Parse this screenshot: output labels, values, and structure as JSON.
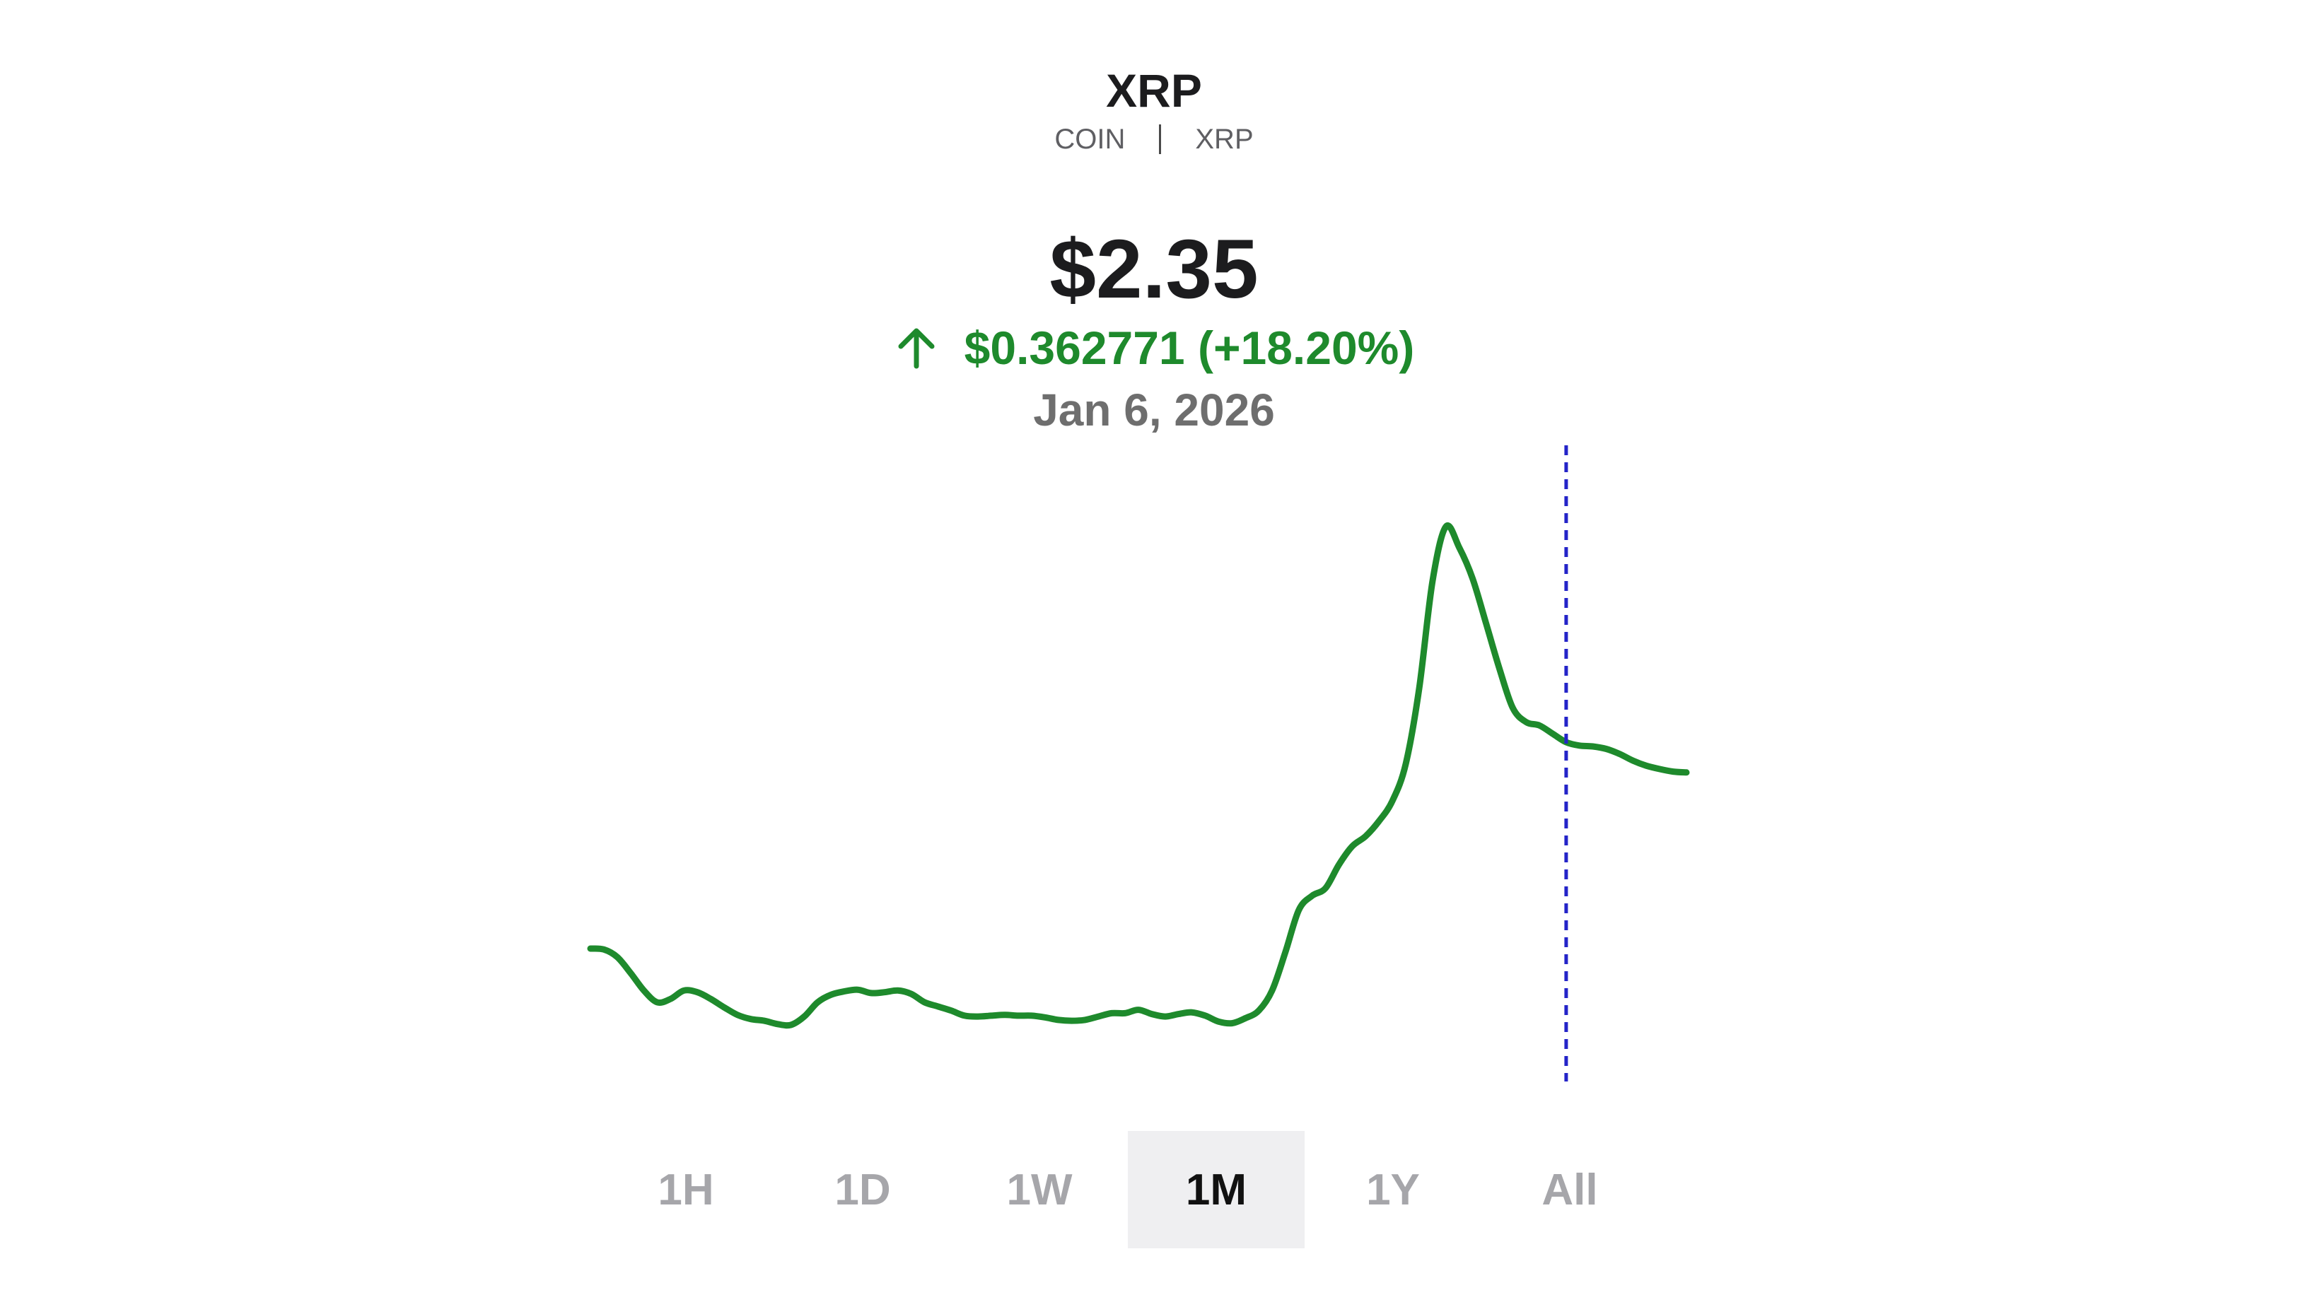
{
  "asset": {
    "name": "XRP",
    "type": "COIN",
    "symbol": "XRP"
  },
  "quote": {
    "price": "$2.35",
    "change": "$0.362771 (+18.20%)",
    "direction_icon": "arrow-up-icon",
    "date": "Jan 6, 2026"
  },
  "colors": {
    "up": "#1e8a2c",
    "line": "#1e8a2c",
    "cursor": "#2424c8",
    "selected_bg": "#efeff1"
  },
  "ranges": [
    {
      "label": "1H",
      "selected": false
    },
    {
      "label": "1D",
      "selected": false
    },
    {
      "label": "1W",
      "selected": false
    },
    {
      "label": "1M",
      "selected": true
    },
    {
      "label": "1Y",
      "selected": false
    },
    {
      "label": "All",
      "selected": false
    }
  ],
  "chart_data": {
    "type": "line",
    "title": "",
    "xlabel": "",
    "ylabel": "",
    "grid": false,
    "cursor_index": 73,
    "series": [
      {
        "values": [
          1.872,
          1.871,
          1.862,
          1.843,
          1.822,
          1.808,
          1.812,
          1.822,
          1.82,
          1.812,
          1.802,
          1.793,
          1.788,
          1.786,
          1.782,
          1.781,
          1.791,
          1.808,
          1.817,
          1.821,
          1.823,
          1.819,
          1.82,
          1.822,
          1.818,
          1.808,
          1.803,
          1.798,
          1.792,
          1.791,
          1.792,
          1.793,
          1.792,
          1.792,
          1.79,
          1.787,
          1.786,
          1.787,
          1.791,
          1.795,
          1.795,
          1.799,
          1.794,
          1.791,
          1.794,
          1.796,
          1.792,
          1.785,
          1.783,
          1.789,
          1.798,
          1.822,
          1.868,
          1.918,
          1.935,
          1.944,
          1.972,
          1.994,
          2.006,
          2.024,
          2.048,
          2.092,
          2.182,
          2.31,
          2.375,
          2.35,
          2.313,
          2.26,
          2.206,
          2.159,
          2.142,
          2.138,
          2.128,
          2.118,
          2.114,
          2.113,
          2.11,
          2.104,
          2.096,
          2.09,
          2.086,
          2.083,
          2.082
        ]
      }
    ]
  }
}
